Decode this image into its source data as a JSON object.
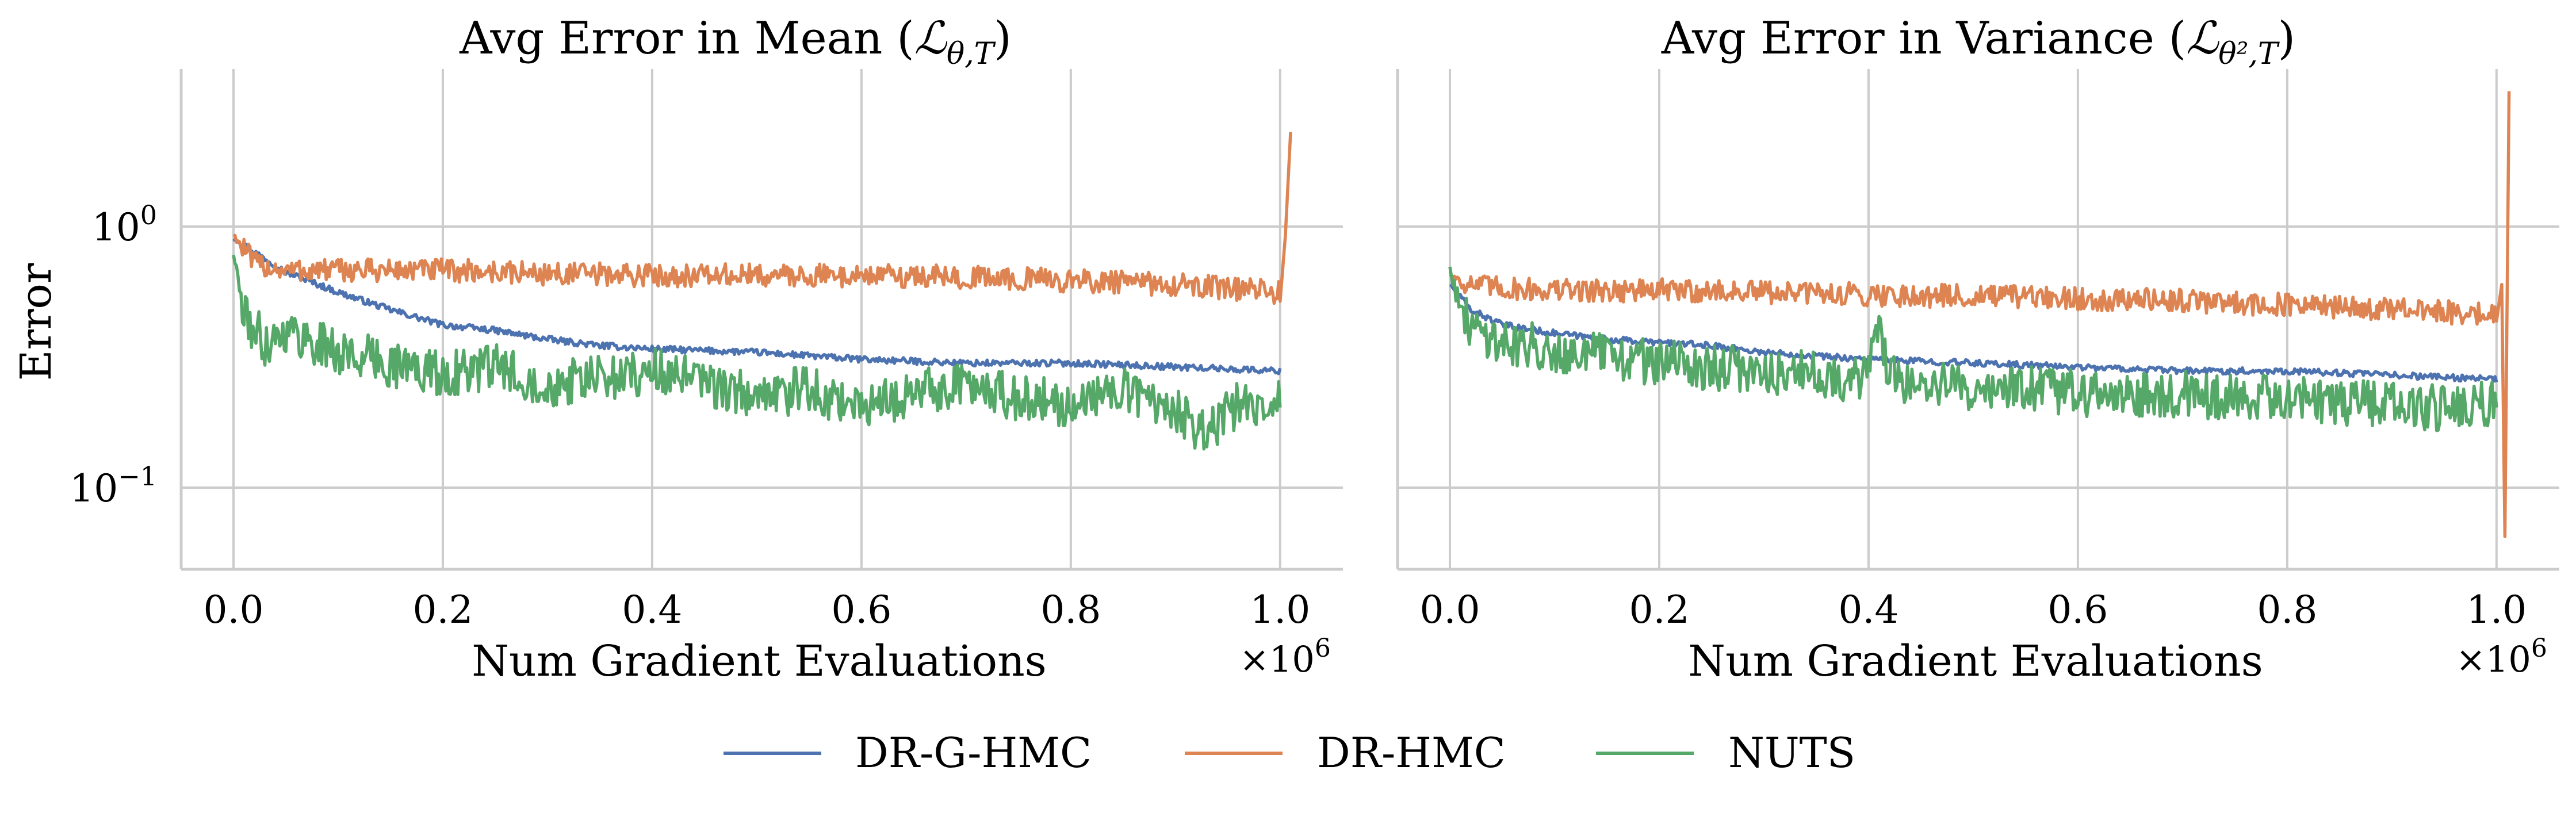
{
  "figure": {
    "ylabel": "Error",
    "xlabel": "Num Gradient Evaluations",
    "x_offset_label": "×10",
    "x_offset_exp": "6",
    "y_ticks": [
      {
        "base": "10",
        "exp": "0",
        "value": 1.0
      },
      {
        "base": "10",
        "exp": "−1",
        "value": 0.1
      }
    ],
    "x_ticks": [
      "0.0",
      "0.2",
      "0.4",
      "0.6",
      "0.8",
      "1.0"
    ],
    "legend": [
      {
        "label": "DR-G-HMC",
        "color": "#4c72b0"
      },
      {
        "label": "DR-HMC",
        "color": "#dd8452"
      },
      {
        "label": "NUTS",
        "color": "#55a868"
      }
    ]
  },
  "panels": [
    {
      "title_prefix": "Avg Error in Mean (",
      "title_math": "ℒ",
      "title_sub": "θ,T",
      "title_suffix": ")"
    },
    {
      "title_prefix": "Avg Error in Variance (",
      "title_math": "ℒ",
      "title_sub": "θ²,T",
      "title_suffix": ")"
    }
  ],
  "chart_data": [
    {
      "type": "line",
      "title": "Avg Error in Mean (ℒθ,T)",
      "xlabel": "Num Gradient Evaluations",
      "ylabel": "Error",
      "yscale": "log",
      "xlim": [
        -0.05,
        1.06
      ],
      "ylim": [
        0.05,
        4.0
      ],
      "x_multiplier": "1e6",
      "grid": true,
      "legend_position": "bottom-center",
      "series": [
        {
          "name": "DR-G-HMC",
          "color": "#4c72b0",
          "x": [
            0.0,
            0.02,
            0.05,
            0.1,
            0.15,
            0.2,
            0.25,
            0.3,
            0.35,
            0.4,
            0.5,
            0.6,
            0.7,
            0.8,
            0.9,
            1.0
          ],
          "y": [
            0.9,
            0.8,
            0.67,
            0.56,
            0.48,
            0.42,
            0.4,
            0.37,
            0.35,
            0.34,
            0.33,
            0.31,
            0.3,
            0.3,
            0.29,
            0.28
          ]
        },
        {
          "name": "DR-HMC",
          "color": "#dd8452",
          "x": [
            0.0,
            0.02,
            0.05,
            0.1,
            0.2,
            0.3,
            0.4,
            0.5,
            0.6,
            0.7,
            0.8,
            0.9,
            0.95,
            1.0,
            1.005,
            1.01
          ],
          "y": [
            0.93,
            0.72,
            0.68,
            0.68,
            0.68,
            0.66,
            0.65,
            0.65,
            0.65,
            0.64,
            0.62,
            0.6,
            0.58,
            0.56,
            0.92,
            2.3
          ]
        },
        {
          "name": "NUTS",
          "color": "#55a868",
          "x": [
            0.0,
            0.01,
            0.03,
            0.05,
            0.1,
            0.15,
            0.2,
            0.25,
            0.3,
            0.35,
            0.4,
            0.45,
            0.5,
            0.55,
            0.6,
            0.65,
            0.7,
            0.75,
            0.8,
            0.85,
            0.9,
            0.93,
            0.96,
            1.0
          ],
          "y": [
            0.8,
            0.45,
            0.36,
            0.4,
            0.33,
            0.3,
            0.27,
            0.29,
            0.25,
            0.26,
            0.28,
            0.25,
            0.22,
            0.24,
            0.2,
            0.23,
            0.25,
            0.22,
            0.21,
            0.24,
            0.2,
            0.16,
            0.21,
            0.22
          ]
        }
      ]
    },
    {
      "type": "line",
      "title": "Avg Error in Variance (ℒθ²,T)",
      "xlabel": "Num Gradient Evaluations",
      "ylabel": "",
      "yscale": "log",
      "xlim": [
        -0.05,
        1.06
      ],
      "ylim": [
        0.05,
        4.0
      ],
      "x_multiplier": "1e6",
      "grid": true,
      "legend_position": "bottom-center",
      "series": [
        {
          "name": "DR-G-HMC",
          "color": "#4c72b0",
          "x": [
            0.0,
            0.02,
            0.05,
            0.1,
            0.15,
            0.2,
            0.25,
            0.3,
            0.35,
            0.4,
            0.5,
            0.6,
            0.7,
            0.8,
            0.9,
            1.0
          ],
          "y": [
            0.6,
            0.48,
            0.42,
            0.39,
            0.37,
            0.36,
            0.35,
            0.33,
            0.32,
            0.31,
            0.3,
            0.29,
            0.28,
            0.28,
            0.27,
            0.26
          ]
        },
        {
          "name": "DR-HMC",
          "color": "#dd8452",
          "x": [
            0.0,
            0.02,
            0.05,
            0.1,
            0.2,
            0.3,
            0.4,
            0.5,
            0.6,
            0.7,
            0.8,
            0.9,
            0.95,
            1.0,
            1.005,
            1.008,
            1.012
          ],
          "y": [
            0.65,
            0.6,
            0.58,
            0.57,
            0.57,
            0.56,
            0.55,
            0.54,
            0.53,
            0.52,
            0.5,
            0.48,
            0.47,
            0.46,
            0.6,
            0.065,
            3.3
          ]
        },
        {
          "name": "NUTS",
          "color": "#55a868",
          "x": [
            0.0,
            0.01,
            0.03,
            0.05,
            0.1,
            0.15,
            0.2,
            0.25,
            0.3,
            0.35,
            0.4,
            0.41,
            0.42,
            0.45,
            0.5,
            0.55,
            0.6,
            0.65,
            0.7,
            0.75,
            0.8,
            0.85,
            0.9,
            0.95,
            1.0
          ],
          "y": [
            0.72,
            0.45,
            0.4,
            0.36,
            0.34,
            0.32,
            0.3,
            0.29,
            0.28,
            0.27,
            0.26,
            0.45,
            0.26,
            0.25,
            0.24,
            0.24,
            0.23,
            0.22,
            0.23,
            0.22,
            0.22,
            0.21,
            0.21,
            0.2,
            0.21
          ]
        }
      ]
    }
  ]
}
